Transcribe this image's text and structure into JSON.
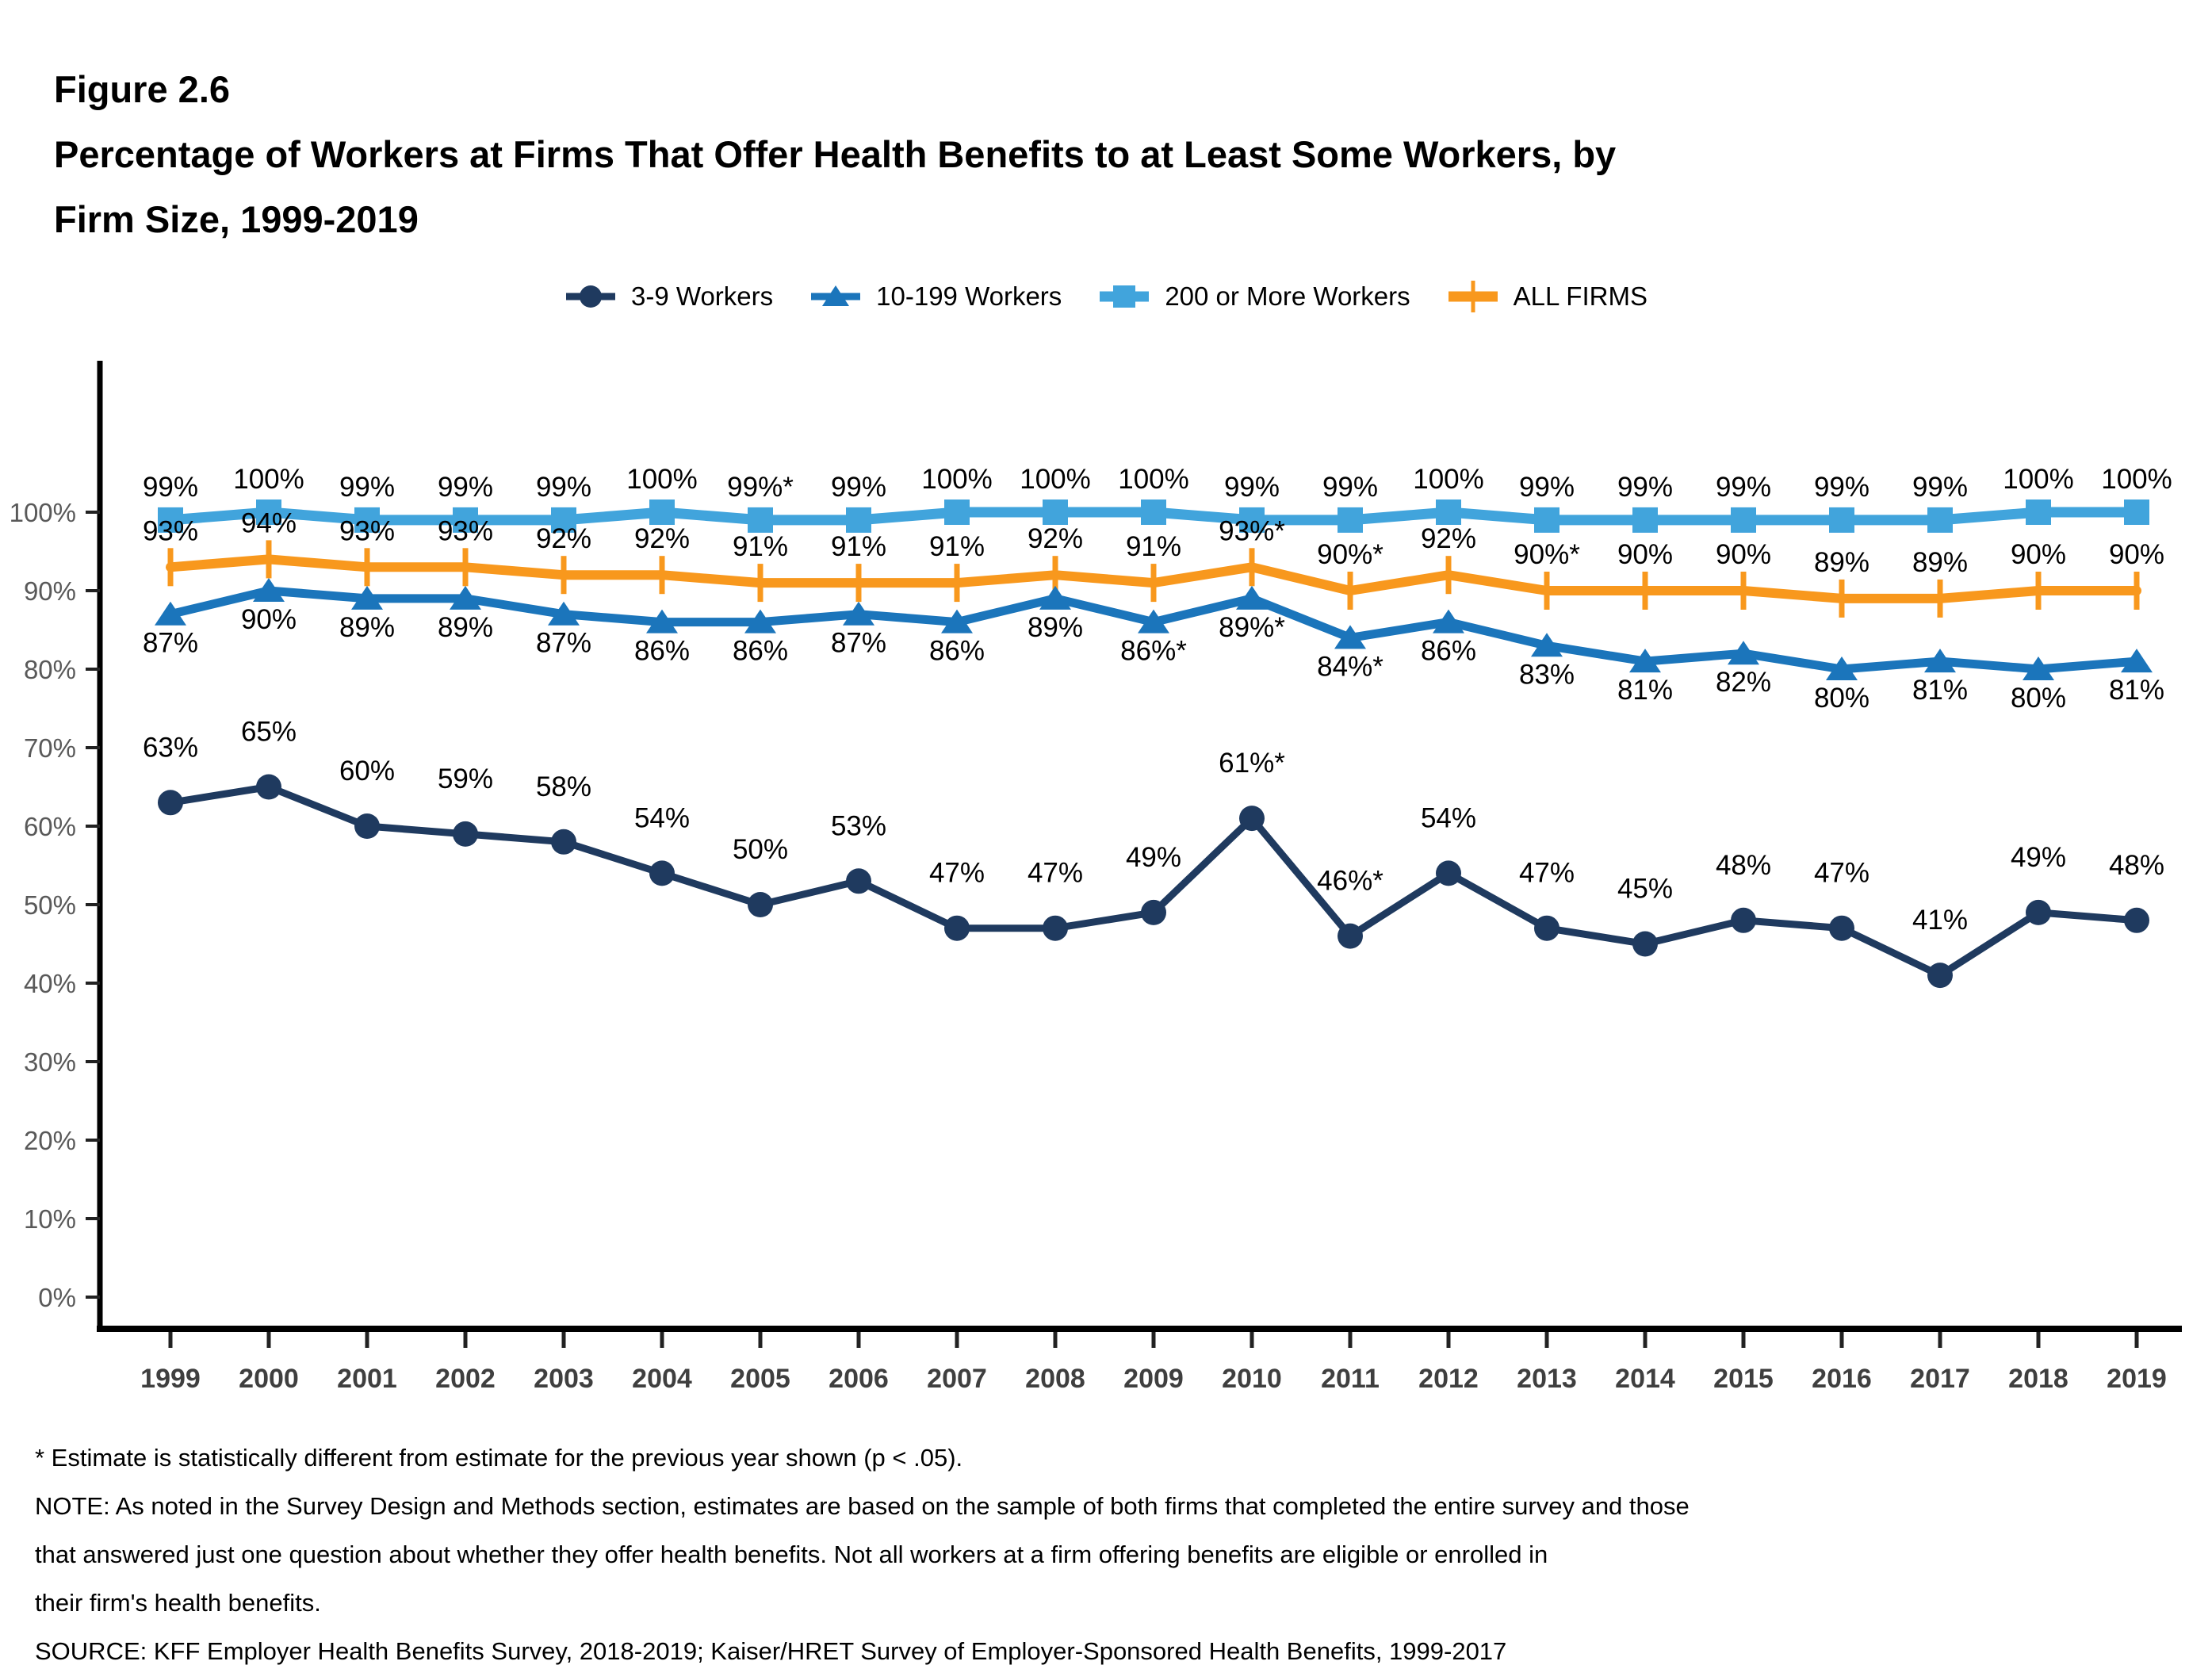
{
  "figure_label": "Figure 2.6",
  "title_line1": "Percentage of Workers at Firms That Offer Health Benefits to at Least Some Workers, by",
  "title_line2": "Firm Size, 1999-2019",
  "colors": {
    "navy": "#1F3A5F",
    "blue": "#1B75BB",
    "light_blue": "#41A4DC",
    "orange": "#F8981D",
    "axis": "#000000",
    "ytick_text": "#595959",
    "xtick_text": "#3F3F3F",
    "label_text": "#000000"
  },
  "legend": [
    {
      "label": "3-9 Workers",
      "marker": "circle",
      "color": "#1F3A5F"
    },
    {
      "label": "10-199 Workers",
      "marker": "triangle",
      "color": "#1B75BB"
    },
    {
      "label": "200 or More Workers",
      "marker": "square",
      "color": "#41A4DC"
    },
    {
      "label": "ALL FIRMS",
      "marker": "plus",
      "color": "#F8981D"
    }
  ],
  "chart_data": {
    "type": "line",
    "x": [
      "1999",
      "2000",
      "2001",
      "2002",
      "2003",
      "2004",
      "2005",
      "2006",
      "2007",
      "2008",
      "2009",
      "2010",
      "2011",
      "2012",
      "2013",
      "2014",
      "2015",
      "2016",
      "2017",
      "2018",
      "2019"
    ],
    "ylim": [
      0,
      100
    ],
    "yticks": [
      "0%",
      "10%",
      "20%",
      "30%",
      "40%",
      "50%",
      "60%",
      "70%",
      "80%",
      "90%",
      "100%"
    ],
    "grid": false,
    "legend_position": "top",
    "series": [
      {
        "name": "3-9 Workers",
        "marker": "circle",
        "color": "#1F3A5F",
        "values": [
          63,
          65,
          60,
          59,
          58,
          54,
          50,
          53,
          47,
          47,
          49,
          61,
          46,
          54,
          47,
          45,
          48,
          47,
          41,
          49,
          48
        ],
        "labels": [
          "63%",
          "65%",
          "60%",
          "59%",
          "58%",
          "54%",
          "50%",
          "53%",
          "47%",
          "47%",
          "49%",
          "61%*",
          "46%*",
          "54%",
          "47%",
          "45%",
          "48%",
          "47%",
          "41%",
          "49%",
          "48%"
        ]
      },
      {
        "name": "10-199 Workers",
        "marker": "triangle",
        "color": "#1B75BB",
        "values": [
          87,
          90,
          89,
          89,
          87,
          86,
          86,
          87,
          86,
          89,
          86,
          89,
          84,
          86,
          83,
          81,
          82,
          80,
          81,
          80,
          81
        ],
        "labels": [
          "87%",
          "90%",
          "89%",
          "89%",
          "87%",
          "86%",
          "86%",
          "87%",
          "86%",
          "89%",
          "86%*",
          "89%*",
          "84%*",
          "86%",
          "83%",
          "81%",
          "82%",
          "80%",
          "81%",
          "80%",
          "81%"
        ]
      },
      {
        "name": "200 or More Workers",
        "marker": "square",
        "color": "#41A4DC",
        "values": [
          99,
          100,
          99,
          99,
          99,
          100,
          99,
          99,
          100,
          100,
          100,
          99,
          99,
          100,
          99,
          99,
          99,
          99,
          99,
          100,
          100
        ],
        "labels": [
          "99%",
          "100%",
          "99%",
          "99%",
          "99%",
          "100%",
          "99%*",
          "99%",
          "100%",
          "100%",
          "100%",
          "99%",
          "99%",
          "100%",
          "99%",
          "99%",
          "99%",
          "99%",
          "99%",
          "100%",
          "100%"
        ]
      },
      {
        "name": "ALL FIRMS",
        "marker": "plus",
        "color": "#F8981D",
        "values": [
          93,
          94,
          93,
          93,
          92,
          92,
          91,
          91,
          91,
          92,
          91,
          93,
          90,
          92,
          90,
          90,
          90,
          89,
          89,
          90,
          90
        ],
        "labels": [
          "93%",
          "94%",
          "93%",
          "93%",
          "92%",
          "92%",
          "91%",
          "91%",
          "91%",
          "92%",
          "91%",
          "93%*",
          "90%*",
          "92%",
          "90%*",
          "90%",
          "90%",
          "89%",
          "89%",
          "90%",
          "90%"
        ]
      }
    ]
  },
  "footnotes": [
    "* Estimate is statistically different from estimate for the previous year shown (p < .05).",
    "NOTE: As noted in the Survey Design and Methods section, estimates are based on the sample of both firms that completed the entire survey and those",
    "that answered just one question about whether they offer health benefits. Not all workers at a firm offering benefits are eligible or enrolled in",
    "their firm's health benefits.",
    "SOURCE: KFF Employer Health Benefits Survey, 2018-2019; Kaiser/HRET Survey of Employer-Sponsored Health Benefits, 1999-2017"
  ]
}
